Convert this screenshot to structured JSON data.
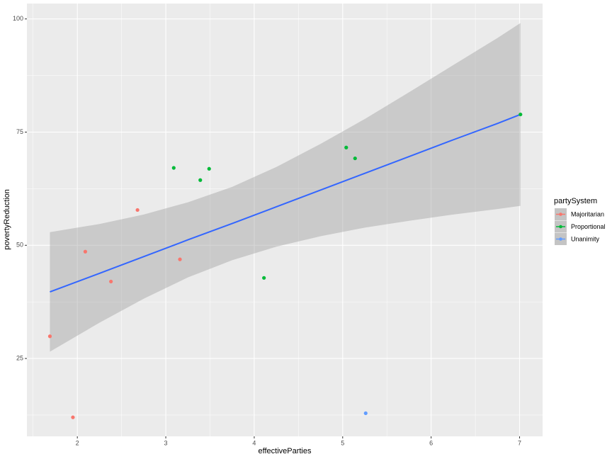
{
  "chart_data": {
    "type": "scatter",
    "x_label": "effectiveParties",
    "y_label": "povertyReduction",
    "legend_title": "partySystem",
    "legend": "right",
    "xlim": [
      1.43,
      7.26
    ],
    "ylim": [
      7.8,
      103.4
    ],
    "xticks": [
      2,
      3,
      4,
      5,
      6,
      7
    ],
    "yticks": [
      25,
      50,
      75,
      100
    ],
    "xminor": [
      1.5,
      2.5,
      3.5,
      4.5,
      5.5,
      6.5
    ],
    "yminor": [
      12.5,
      37.5,
      62.5,
      87.5
    ],
    "grid": true,
    "series": [
      {
        "name": "Majoritarian",
        "color": "#F8766D",
        "x": [
          1.69,
          1.95,
          2.09,
          2.38,
          2.68,
          3.16
        ],
        "values": [
          29.9,
          12.0,
          48.6,
          42.0,
          57.8,
          46.9
        ]
      },
      {
        "name": "Proportional",
        "color": "#00BA38",
        "x": [
          3.09,
          3.39,
          3.49,
          4.11,
          5.04,
          5.14,
          7.01
        ],
        "values": [
          67.1,
          64.4,
          66.9,
          42.8,
          71.6,
          69.2,
          78.9
        ]
      },
      {
        "name": "Unanimity",
        "color": "#619CFF",
        "x": [
          5.26
        ],
        "values": [
          12.9
        ]
      }
    ],
    "fit": {
      "color": "#3366FF",
      "band_color": "#999999",
      "x": [
        1.69,
        2.25,
        2.75,
        3.25,
        3.75,
        4.25,
        4.75,
        5.25,
        5.75,
        6.25,
        6.75,
        7.01
      ],
      "values": [
        39.7,
        43.8,
        47.5,
        51.2,
        54.8,
        58.5,
        62.2,
        65.9,
        69.6,
        73.3,
        76.9,
        78.9
      ],
      "lower": [
        26.5,
        32.9,
        38.2,
        42.9,
        46.7,
        49.7,
        52.0,
        53.9,
        55.4,
        56.8,
        58.0,
        58.7
      ],
      "upper": [
        52.9,
        54.7,
        56.8,
        59.5,
        62.9,
        67.3,
        72.4,
        77.9,
        83.8,
        89.8,
        95.8,
        99.1
      ]
    }
  }
}
